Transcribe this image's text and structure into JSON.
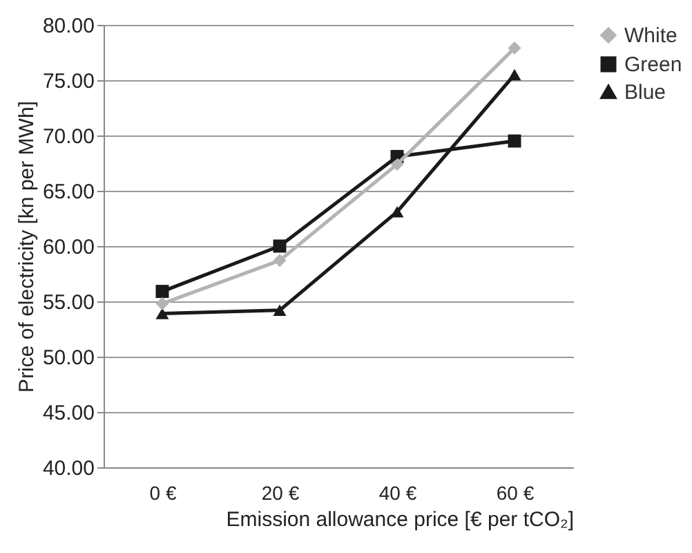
{
  "chart_data": {
    "type": "line",
    "xlabel": "Emission allowance price [€ per tCO₂]",
    "ylabel": "Price of electricity [kn per MWh]",
    "categories": [
      "0 €",
      "20 €",
      "40 €",
      "60 €"
    ],
    "series": [
      {
        "name": "White",
        "color": "#b4b4b4",
        "marker": "diamond",
        "values": [
          54.8,
          58.7,
          67.4,
          77.9
        ]
      },
      {
        "name": "Green",
        "color": "#1a1a1a",
        "marker": "square",
        "values": [
          55.9,
          60.0,
          68.1,
          69.5
        ]
      },
      {
        "name": "Blue",
        "color": "#1a1a1a",
        "marker": "triangle",
        "values": [
          53.9,
          54.2,
          63.1,
          75.5
        ]
      }
    ],
    "ylim": [
      40,
      80
    ],
    "yticks": [
      {
        "value": 40,
        "label": "40.00"
      },
      {
        "value": 45,
        "label": "45.00"
      },
      {
        "value": 50,
        "label": "50.00"
      },
      {
        "value": 55,
        "label": "55.00"
      },
      {
        "value": 60,
        "label": "60.00"
      },
      {
        "value": 65,
        "label": "65.00"
      },
      {
        "value": 70,
        "label": "70.00"
      },
      {
        "value": 75,
        "label": "75.00"
      },
      {
        "value": 80,
        "label": "80.00"
      }
    ],
    "grid": "y",
    "legend": "right",
    "line_style": "solid"
  }
}
